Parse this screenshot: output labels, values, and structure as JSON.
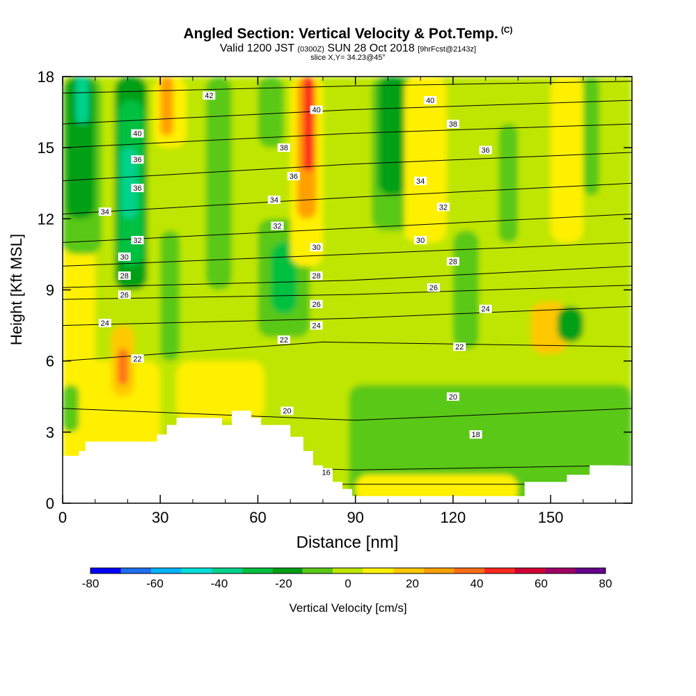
{
  "header": {
    "title": "Angled Section: Vertical Velocity & Pot.Temp.",
    "title_suffix": "(C)",
    "valid_prefix": "Valid 1200 JST",
    "valid_utc": "(0300Z)",
    "valid_date": "SUN 28 Oct 2018",
    "forecast": "[9hrFcst@2143z]",
    "slice": "slice X,Y= 34.23@45°"
  },
  "chart_data": {
    "type": "heatmap",
    "xlabel": "Distance [nm]",
    "ylabel": "Height [Kft MSL]",
    "xlim": [
      0,
      175
    ],
    "ylim": [
      0,
      18
    ],
    "xticks": [
      0,
      30,
      60,
      90,
      120,
      150
    ],
    "yticks": [
      0,
      3,
      6,
      9,
      12,
      15,
      18
    ],
    "colorbar": {
      "label": "Vertical Velocity [cm/s]",
      "ticks": [
        -80,
        -60,
        -40,
        -20,
        0,
        20,
        40,
        60,
        80
      ],
      "bounds": [
        -80,
        -70,
        -60,
        -50,
        -40,
        -30,
        -20,
        -10,
        0,
        10,
        20,
        30,
        40,
        50,
        60,
        70,
        80
      ],
      "colors": [
        "#0000ff",
        "#1e6ef0",
        "#00b4ff",
        "#00e0d8",
        "#00d28c",
        "#00c040",
        "#00a014",
        "#5ac814",
        "#bee600",
        "#fff000",
        "#ffc800",
        "#ffa000",
        "#ff6e14",
        "#ff281e",
        "#d20032",
        "#a00064",
        "#64008c"
      ]
    },
    "terrain": [
      [
        0,
        2
      ],
      [
        5,
        2
      ],
      [
        5,
        2.2
      ],
      [
        7,
        2.2
      ],
      [
        7,
        2.6
      ],
      [
        29,
        2.6
      ],
      [
        29,
        2.9
      ],
      [
        32,
        2.9
      ],
      [
        32,
        3.3
      ],
      [
        35,
        3.3
      ],
      [
        35,
        3.6
      ],
      [
        49,
        3.6
      ],
      [
        49,
        3.3
      ],
      [
        52,
        3.3
      ],
      [
        52,
        3.9
      ],
      [
        58,
        3.9
      ],
      [
        58,
        3.6
      ],
      [
        61,
        3.6
      ],
      [
        61,
        3.3
      ],
      [
        70,
        3.3
      ],
      [
        70,
        2.8
      ],
      [
        74,
        2.8
      ],
      [
        74,
        2.2
      ],
      [
        77,
        2.2
      ],
      [
        77,
        1.6
      ],
      [
        80,
        1.6
      ],
      [
        80,
        1.3
      ],
      [
        83,
        1.3
      ],
      [
        83,
        0.9
      ],
      [
        86,
        0.9
      ],
      [
        86,
        0.6
      ],
      [
        89,
        0.6
      ],
      [
        89,
        0.3
      ],
      [
        142,
        0.3
      ],
      [
        142,
        0.9
      ],
      [
        155,
        0.9
      ],
      [
        155,
        1.2
      ],
      [
        162,
        1.2
      ],
      [
        162,
        1.6
      ],
      [
        175,
        1.6
      ]
    ],
    "vertical_velocity_cells": [
      {
        "x0": 0,
        "x1": 175,
        "y0": 0,
        "y1": 18,
        "w": 5
      },
      {
        "x0": 0,
        "x1": 30,
        "y0": 0,
        "y1": 6,
        "w": 10
      },
      {
        "x0": 35,
        "x1": 62,
        "y0": 3.5,
        "y1": 6,
        "w": 15
      },
      {
        "x0": 15,
        "x1": 22,
        "y0": 4.5,
        "y1": 7.5,
        "w": 20
      },
      {
        "x0": 17,
        "x1": 20,
        "y0": 5,
        "y1": 6.5,
        "w": 45
      },
      {
        "x0": 88,
        "x1": 175,
        "y0": 0,
        "y1": 5,
        "w": -5
      },
      {
        "x0": 90,
        "x1": 140,
        "y0": 0,
        "y1": 1.2,
        "w": 10
      },
      {
        "x0": 0,
        "x1": 5,
        "y0": 3,
        "y1": 5,
        "w": -5
      },
      {
        "x0": 88,
        "x1": 112,
        "y0": 2.3,
        "y1": 4,
        "w": -5
      },
      {
        "x0": 80,
        "x1": 175,
        "y0": 5,
        "y1": 6,
        "w": 5
      },
      {
        "x0": 0,
        "x1": 10,
        "y0": 5,
        "y1": 11,
        "w": 10
      },
      {
        "x0": 0,
        "x1": 12,
        "y0": 10.5,
        "y1": 18,
        "w": -5
      },
      {
        "x0": 1,
        "x1": 10,
        "y0": 12,
        "y1": 18,
        "w": -15
      },
      {
        "x0": 4,
        "x1": 8,
        "y0": 16,
        "y1": 18,
        "w": -35
      },
      {
        "x0": 16,
        "x1": 26,
        "y0": 9,
        "y1": 18,
        "w": -15
      },
      {
        "x0": 17,
        "x1": 25,
        "y0": 10,
        "y1": 17,
        "w": -25
      },
      {
        "x0": 18,
        "x1": 23,
        "y0": 12,
        "y1": 15,
        "w": -35
      },
      {
        "x0": 28,
        "x1": 38,
        "y0": 15,
        "y1": 18,
        "w": 15
      },
      {
        "x0": 30,
        "x1": 34,
        "y0": 15.5,
        "y1": 18,
        "w": 35
      },
      {
        "x0": 30,
        "x1": 36,
        "y0": 6,
        "y1": 11.5,
        "w": -5
      },
      {
        "x0": 44,
        "x1": 52,
        "y0": 9,
        "y1": 18,
        "w": -5
      },
      {
        "x0": 60,
        "x1": 76,
        "y0": 7,
        "y1": 12,
        "w": -5
      },
      {
        "x0": 64,
        "x1": 72,
        "y0": 8,
        "y1": 11,
        "w": -25
      },
      {
        "x0": 60,
        "x1": 68,
        "y0": 15,
        "y1": 18,
        "w": -5
      },
      {
        "x0": 70,
        "x1": 80,
        "y0": 10,
        "y1": 18,
        "w": 15
      },
      {
        "x0": 72,
        "x1": 78,
        "y0": 12,
        "y1": 18,
        "w": 35
      },
      {
        "x0": 74,
        "x1": 77,
        "y0": 14,
        "y1": 18,
        "w": 55
      },
      {
        "x0": 80,
        "x1": 86,
        "y0": 13,
        "y1": 18,
        "w": 5
      },
      {
        "x0": 95,
        "x1": 110,
        "y0": 11.5,
        "y1": 18,
        "w": -5
      },
      {
        "x0": 97,
        "x1": 106,
        "y0": 13,
        "y1": 18,
        "w": -15
      },
      {
        "x0": 105,
        "x1": 118,
        "y0": 11,
        "y1": 18,
        "w": 15
      },
      {
        "x0": 120,
        "x1": 128,
        "y0": 6.5,
        "y1": 11.5,
        "w": -5
      },
      {
        "x0": 134,
        "x1": 140,
        "y0": 11,
        "y1": 16,
        "w": -5
      },
      {
        "x0": 144,
        "x1": 155,
        "y0": 6.3,
        "y1": 8.5,
        "w": 20
      },
      {
        "x0": 150,
        "x1": 160,
        "y0": 11,
        "y1": 18,
        "w": 10
      },
      {
        "x0": 160,
        "x1": 165,
        "y0": 13,
        "y1": 18,
        "w": -5
      },
      {
        "x0": 152,
        "x1": 160,
        "y0": 6.8,
        "y1": 8.3,
        "w": -15
      }
    ],
    "potential_temperature_contours": [
      {
        "label": "16",
        "points": [
          [
            0,
            0.8
          ],
          [
            175,
            0.8
          ]
        ]
      },
      {
        "label": "18",
        "points": [
          [
            0,
            1.8
          ],
          [
            90,
            1.4
          ],
          [
            175,
            1.6
          ]
        ]
      },
      {
        "label": "20",
        "points": [
          [
            0,
            4
          ],
          [
            90,
            3.5
          ],
          [
            175,
            4
          ]
        ]
      },
      {
        "label": "22",
        "points": [
          [
            0,
            6
          ],
          [
            80,
            6.8
          ],
          [
            175,
            6.6
          ]
        ]
      },
      {
        "label": "24",
        "points": [
          [
            0,
            7.5
          ],
          [
            88,
            7.8
          ],
          [
            175,
            8.3
          ]
        ]
      },
      {
        "label": "26",
        "points": [
          [
            0,
            8.6
          ],
          [
            88,
            8.8
          ],
          [
            175,
            9.2
          ]
        ]
      },
      {
        "label": "28",
        "points": [
          [
            0,
            9.1
          ],
          [
            88,
            9.4
          ],
          [
            175,
            10
          ]
        ]
      },
      {
        "label": "30",
        "points": [
          [
            0,
            10
          ],
          [
            88,
            10.5
          ],
          [
            175,
            11
          ]
        ]
      },
      {
        "label": "32",
        "points": [
          [
            0,
            11
          ],
          [
            88,
            11.6
          ],
          [
            175,
            12.2
          ]
        ]
      },
      {
        "label": "34",
        "points": [
          [
            0,
            12.2
          ],
          [
            88,
            12.9
          ],
          [
            175,
            13.5
          ]
        ]
      },
      {
        "label": "36",
        "points": [
          [
            0,
            13.6
          ],
          [
            88,
            14.3
          ],
          [
            175,
            14.8
          ]
        ]
      },
      {
        "label": "38",
        "points": [
          [
            0,
            15
          ],
          [
            88,
            15.6
          ],
          [
            175,
            16
          ]
        ]
      },
      {
        "label": "40",
        "points": [
          [
            0,
            16
          ],
          [
            88,
            16.6
          ],
          [
            175,
            17
          ]
        ]
      },
      {
        "label": "42",
        "points": [
          [
            0,
            17.3
          ],
          [
            88,
            17.6
          ],
          [
            175,
            17.8
          ]
        ]
      }
    ],
    "contour_labels": [
      {
        "text": "42",
        "x": 45,
        "y": 17.2
      },
      {
        "text": "40",
        "x": 78,
        "y": 16.6
      },
      {
        "text": "40",
        "x": 113,
        "y": 17
      },
      {
        "text": "38",
        "x": 120,
        "y": 16
      },
      {
        "text": "40",
        "x": 23,
        "y": 15.6
      },
      {
        "text": "38",
        "x": 68,
        "y": 15
      },
      {
        "text": "36",
        "x": 130,
        "y": 14.9
      },
      {
        "text": "36",
        "x": 23,
        "y": 14.5
      },
      {
        "text": "36",
        "x": 71,
        "y": 13.8
      },
      {
        "text": "34",
        "x": 110,
        "y": 13.6
      },
      {
        "text": "36",
        "x": 23,
        "y": 13.3
      },
      {
        "text": "34",
        "x": 65,
        "y": 12.8
      },
      {
        "text": "32",
        "x": 117,
        "y": 12.5
      },
      {
        "text": "34",
        "x": 13,
        "y": 12.3
      },
      {
        "text": "32",
        "x": 66,
        "y": 11.7
      },
      {
        "text": "30",
        "x": 110,
        "y": 11.1
      },
      {
        "text": "32",
        "x": 23,
        "y": 11.1
      },
      {
        "text": "30",
        "x": 78,
        "y": 10.8
      },
      {
        "text": "30",
        "x": 19,
        "y": 10.4
      },
      {
        "text": "28",
        "x": 120,
        "y": 10.2
      },
      {
        "text": "28",
        "x": 78,
        "y": 9.6
      },
      {
        "text": "28",
        "x": 19,
        "y": 9.6
      },
      {
        "text": "26",
        "x": 114,
        "y": 9.1
      },
      {
        "text": "26",
        "x": 19,
        "y": 8.8
      },
      {
        "text": "26",
        "x": 78,
        "y": 8.4
      },
      {
        "text": "24",
        "x": 130,
        "y": 8.2
      },
      {
        "text": "24",
        "x": 13,
        "y": 7.6
      },
      {
        "text": "24",
        "x": 78,
        "y": 7.5
      },
      {
        "text": "22",
        "x": 68,
        "y": 6.9
      },
      {
        "text": "22",
        "x": 122,
        "y": 6.6
      },
      {
        "text": "22",
        "x": 23,
        "y": 6.1
      },
      {
        "text": "20",
        "x": 120,
        "y": 4.5
      },
      {
        "text": "20",
        "x": 69,
        "y": 3.9
      },
      {
        "text": "18",
        "x": 127,
        "y": 2.9
      },
      {
        "text": "16",
        "x": 81,
        "y": 1.3
      }
    ]
  }
}
